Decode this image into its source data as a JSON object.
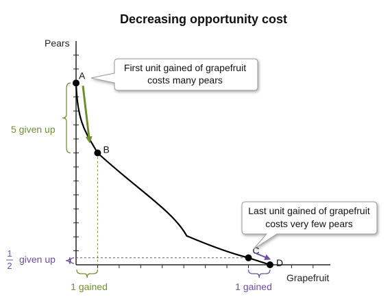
{
  "chart_data": {
    "type": "line",
    "title": "Decreasing opportunity cost",
    "xlabel": "Grapefruit",
    "ylabel": "Pears",
    "grid": false,
    "legend": "none",
    "series": [
      {
        "points": [
          {
            "label": "A",
            "x": 0,
            "y": 13
          },
          {
            "label": "B",
            "x": 1,
            "y": 8
          },
          {
            "label": "C",
            "x": 8,
            "y": 0.5
          },
          {
            "label": "D",
            "x": 9,
            "y": 0
          }
        ]
      }
    ],
    "xlim": [
      0,
      11.8
    ],
    "ylim": [
      0,
      16
    ],
    "annotations": {
      "green_bracket": {
        "label": "5 given up",
        "from_y": 13,
        "to_y": 8
      },
      "purple_bracket_left": {
        "frac_num": "1",
        "frac_den": "2",
        "label": "given up",
        "from_y": 0.5,
        "to_y": 0
      },
      "gained_left": {
        "label": "1 gained",
        "from_x": 0,
        "to_x": 1
      },
      "gained_right": {
        "label": "1 gained",
        "from_x": 8,
        "to_x": 9
      },
      "callout_top": {
        "lines": [
          "First unit gained of grapefruit",
          "costs many pears"
        ]
      },
      "callout_bottom": {
        "lines": [
          "Last unit gained of grapefruit",
          "costs very few pears"
        ]
      }
    },
    "colors": {
      "curve": "#000000",
      "green": "#6f8f2e",
      "purple": "#6a4fa3",
      "axis": "#222222"
    }
  }
}
